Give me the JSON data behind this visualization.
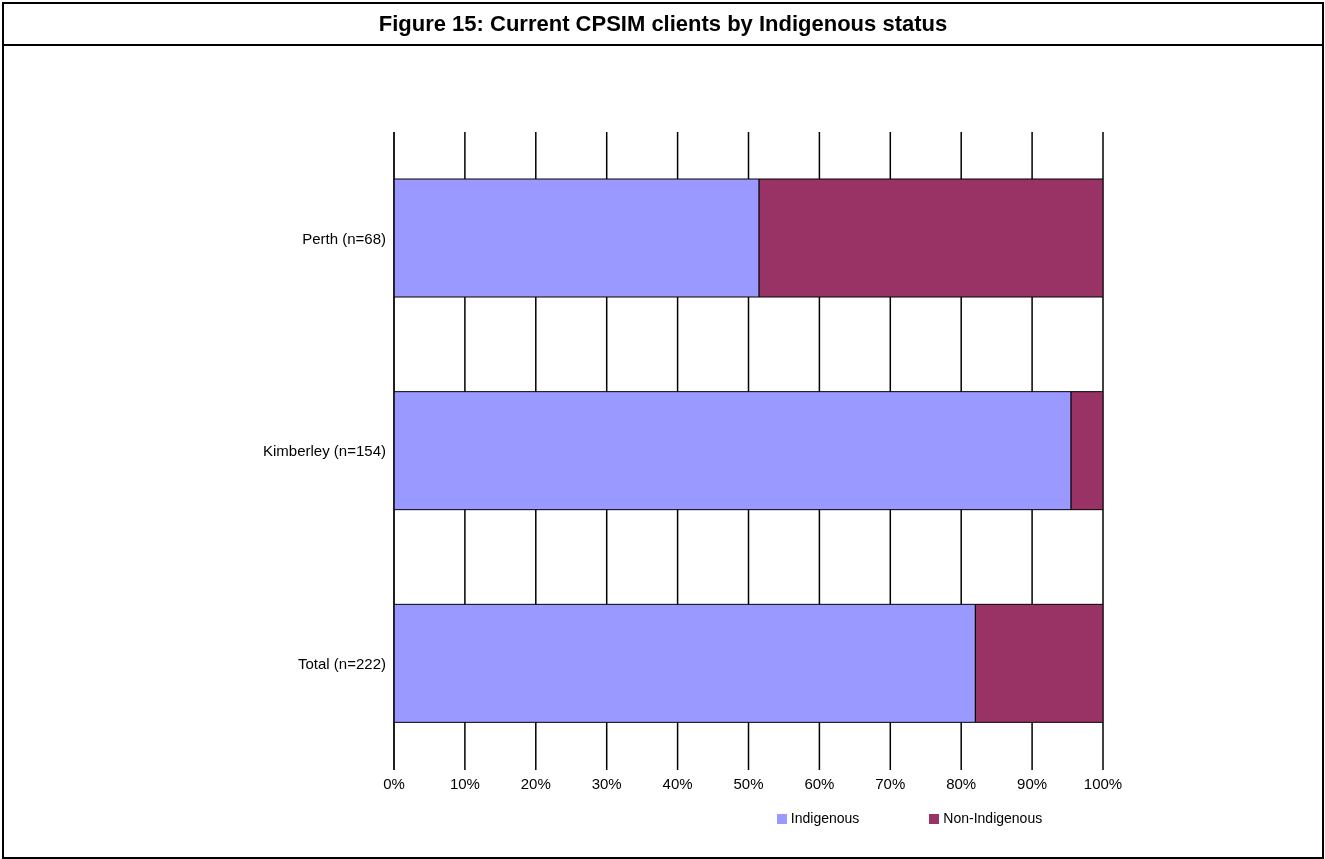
{
  "chart_data": {
    "type": "bar",
    "title": "Figure 15: Current CPSIM clients by Indigenous status",
    "orientation": "horizontal",
    "stacked": true,
    "categories": [
      "Perth (n=68)",
      "Kimberley (n=154)",
      "Total (n=222)"
    ],
    "series": [
      {
        "name": "Indigenous",
        "color": "#9999ff",
        "values": [
          51.5,
          95.5,
          82
        ]
      },
      {
        "name": "Non-Indigenous",
        "color": "#993366",
        "values": [
          48.5,
          4.5,
          18
        ]
      }
    ],
    "xlim": [
      0,
      100
    ],
    "xticks": [
      {
        "value": 0,
        "label": "0%"
      },
      {
        "value": 10,
        "label": "10%"
      },
      {
        "value": 20,
        "label": "20%"
      },
      {
        "value": 30,
        "label": "30%"
      },
      {
        "value": 40,
        "label": "40%"
      },
      {
        "value": 50,
        "label": "50%"
      },
      {
        "value": 60,
        "label": "60%"
      },
      {
        "value": 70,
        "label": "70%"
      },
      {
        "value": 80,
        "label": "80%"
      },
      {
        "value": 90,
        "label": "90%"
      },
      {
        "value": 100,
        "label": "100%"
      }
    ],
    "grid": "x",
    "legend": "bottom"
  }
}
